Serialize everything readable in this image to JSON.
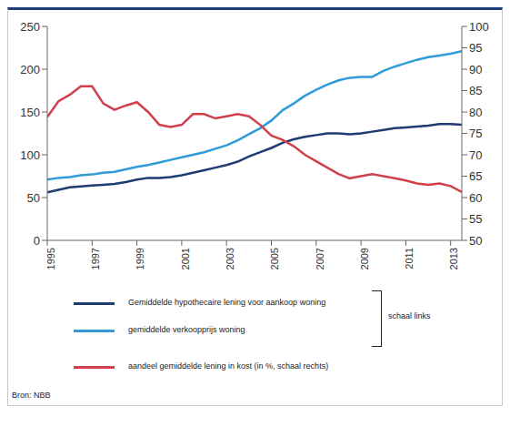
{
  "chart_data": {
    "type": "line",
    "source": "Bron: NBB",
    "annotations": [
      "schaal links"
    ],
    "x": [
      1995,
      1995.5,
      1996,
      1996.5,
      1997,
      1997.5,
      1998,
      1998.5,
      1999,
      1999.5,
      2000,
      2000.5,
      2001,
      2001.5,
      2002,
      2002.5,
      2003,
      2003.5,
      2004,
      2004.5,
      2005,
      2005.5,
      2006,
      2006.5,
      2007,
      2007.5,
      2008,
      2008.5,
      2009,
      2009.5,
      2010,
      2010.5,
      2011,
      2011.5,
      2012,
      2012.5,
      2013,
      2013.5
    ],
    "xlim": [
      1995,
      2013.5
    ],
    "xticks": [
      1995,
      1997,
      1999,
      2001,
      2003,
      2005,
      2007,
      2009,
      2011,
      2013
    ],
    "ylim": [
      0,
      250
    ],
    "yticks": [
      0,
      50,
      100,
      150,
      200,
      250
    ],
    "y2lim": [
      50,
      100
    ],
    "y2ticks": [
      50,
      55,
      60,
      65,
      70,
      75,
      80,
      85,
      90,
      95,
      100
    ],
    "grid": false,
    "series": [
      {
        "name": "Gemiddelde hypothecaire lening voor aankoop woning",
        "color": "#1f3b73",
        "values": [
          56,
          59,
          62,
          63,
          64,
          65,
          66,
          68,
          71,
          73,
          73,
          74,
          76,
          79,
          82,
          85,
          88,
          92,
          98,
          103,
          108,
          114,
          118,
          121,
          123,
          125,
          125,
          124,
          125,
          127,
          129,
          131,
          132,
          133,
          134,
          136,
          136,
          135
        ]
      },
      {
        "name": "gemiddelde verkoopprijs woning",
        "color": "#2f9bd8",
        "values": [
          71,
          73,
          74,
          76,
          77,
          79,
          80,
          83,
          86,
          88,
          91,
          94,
          97,
          100,
          103,
          107,
          111,
          117,
          124,
          131,
          140,
          152,
          160,
          169,
          176,
          182,
          187,
          190,
          191,
          191,
          198,
          203,
          207,
          211,
          214,
          216,
          218,
          221
        ]
      },
      {
        "name": "aandeel gemiddelde lening in kost (in %, schaal rechts)",
        "color": "#d0404a",
        "axis": "y2",
        "values": [
          78.8,
          82.5,
          84,
          86,
          86,
          82,
          80.5,
          81.5,
          82.3,
          80,
          77,
          76.5,
          77,
          79.5,
          79.5,
          78.5,
          79,
          79.5,
          79,
          77,
          74.5,
          73.5,
          72,
          70,
          68.5,
          67,
          65.5,
          64.5,
          65,
          65.5,
          65,
          64.5,
          64,
          63.3,
          63,
          63.3,
          62.7,
          61.3
        ]
      }
    ]
  }
}
